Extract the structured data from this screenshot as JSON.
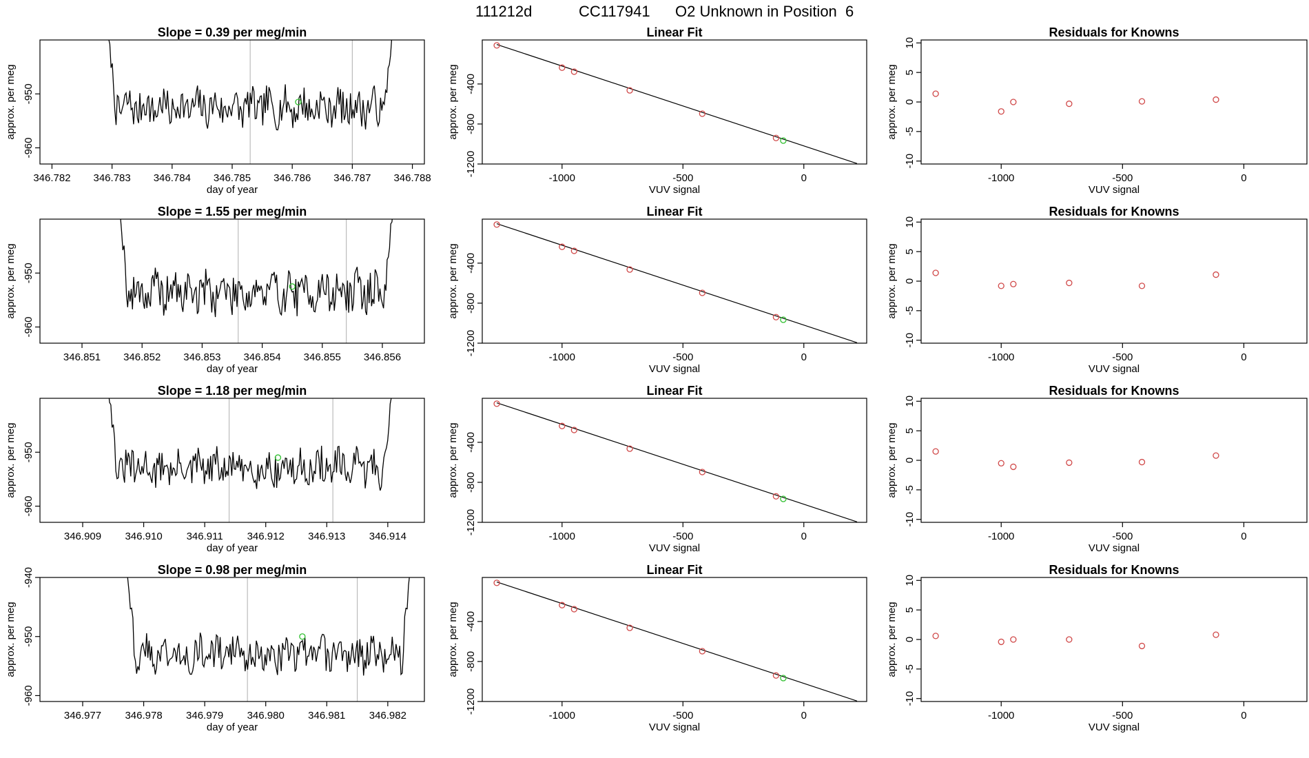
{
  "header": {
    "date_code": "111212d",
    "cylinder_id": "CC117941",
    "description": "O2 Unknown in Position  6"
  },
  "colors": {
    "axis": "#000000",
    "trace": "#000000",
    "known_point": "#d04848",
    "unknown_point": "#30c030",
    "cycle_marker": "#bbbbbb"
  },
  "chart_data": [
    {
      "panel": "row1-timeseries",
      "type": "line",
      "title": "Slope =  0.39  per meg/min",
      "xlabel": "day of year",
      "ylabel": "approx. per meg",
      "xlim": [
        346.7818,
        346.7882
      ],
      "ylim": [
        -963,
        -940
      ],
      "xticks": [
        346.782,
        346.783,
        346.784,
        346.785,
        346.786,
        346.787,
        346.788
      ],
      "xtick_labels": [
        "346.782",
        "346.783",
        "346.784",
        "346.785",
        "346.786",
        "346.787",
        "346.788"
      ],
      "yticks": [
        -960,
        -950
      ],
      "ytick_labels": [
        "-960",
        "-950"
      ],
      "vlines": [
        346.7853,
        346.787
      ],
      "unknown_point": {
        "x": 346.7861,
        "y": -951.5
      },
      "trace": {
        "start": 346.7829,
        "end": 346.7877,
        "base": -952.5,
        "amp": 3.2,
        "seed": 7
      }
    },
    {
      "panel": "row1-linear-fit",
      "type": "scatter",
      "title": "Linear Fit",
      "xlabel": "VUV signal",
      "ylabel": "approx. per meg",
      "xlim": [
        -1330,
        260
      ],
      "ylim": [
        -1200,
        40
      ],
      "xticks": [
        -1000,
        -500,
        0
      ],
      "xtick_labels": [
        "-1000",
        "-500",
        "0"
      ],
      "yticks": [
        -1200,
        -800,
        -400
      ],
      "ytick_labels": [
        "-1200",
        "-800",
        "-400"
      ],
      "fit_line": {
        "x": [
          -1270,
          220
        ],
        "y": [
          -5,
          -1195
        ]
      },
      "knowns": {
        "x": [
          -1270,
          -1000,
          -950,
          -720,
          -420,
          -115
        ],
        "y": [
          -14,
          -237,
          -277,
          -464,
          -697,
          -940
        ]
      },
      "unknown": {
        "x": -85,
        "y": -966
      }
    },
    {
      "panel": "row1-residuals",
      "type": "scatter",
      "title": "Residuals for Knowns",
      "xlabel": "VUV signal",
      "ylabel": "approx. per meg",
      "xlim": [
        -1330,
        260
      ],
      "ylim": [
        -10.5,
        10.5
      ],
      "xticks": [
        -1000,
        -500,
        0
      ],
      "xtick_labels": [
        "-1000",
        "-500",
        "0"
      ],
      "yticks": [
        -10,
        -5,
        0,
        5,
        10
      ],
      "ytick_labels": [
        "-10",
        "-5",
        "0",
        "5",
        "10"
      ],
      "knowns": {
        "x": [
          -1270,
          -1000,
          -950,
          -720,
          -420,
          -115
        ],
        "y": [
          1.4,
          -1.6,
          0.0,
          -0.3,
          0.1,
          0.4
        ]
      }
    },
    {
      "panel": "row2-timeseries",
      "type": "line",
      "title": "Slope =  1.55  per meg/min",
      "xlabel": "day of year",
      "ylabel": "approx. per meg",
      "xlim": [
        346.8503,
        346.8567
      ],
      "ylim": [
        -963,
        -940
      ],
      "xticks": [
        346.851,
        346.852,
        346.853,
        346.854,
        346.855,
        346.856
      ],
      "xtick_labels": [
        "346.851",
        "346.852",
        "346.853",
        "346.854",
        "346.855",
        "346.856"
      ],
      "yticks": [
        -960,
        -950
      ],
      "ytick_labels": [
        "-960",
        "-950"
      ],
      "vlines": [
        346.8536,
        346.8554
      ],
      "unknown_point": {
        "x": 346.8545,
        "y": -952.5
      },
      "trace": {
        "start": 346.8516,
        "end": 346.8562,
        "base": -953.5,
        "amp": 3.5,
        "seed": 19
      }
    },
    {
      "panel": "row2-linear-fit",
      "type": "scatter",
      "title": "Linear Fit",
      "xlabel": "VUV signal",
      "ylabel": "approx. per meg",
      "xlim": [
        -1330,
        260
      ],
      "ylim": [
        -1200,
        40
      ],
      "xticks": [
        -1000,
        -500,
        0
      ],
      "xtick_labels": [
        "-1000",
        "-500",
        "0"
      ],
      "yticks": [
        -1200,
        -800,
        -400
      ],
      "ytick_labels": [
        "-1200",
        "-800",
        "-400"
      ],
      "fit_line": {
        "x": [
          -1270,
          220
        ],
        "y": [
          -5,
          -1195
        ]
      },
      "knowns": {
        "x": [
          -1270,
          -1000,
          -950,
          -720,
          -420,
          -115
        ],
        "y": [
          -14,
          -237,
          -277,
          -464,
          -697,
          -940
        ]
      },
      "unknown": {
        "x": -85,
        "y": -966
      }
    },
    {
      "panel": "row2-residuals",
      "type": "scatter",
      "title": "Residuals for Knowns",
      "xlabel": "VUV signal",
      "ylabel": "approx. per meg",
      "xlim": [
        -1330,
        260
      ],
      "ylim": [
        -10.5,
        10.5
      ],
      "xticks": [
        -1000,
        -500,
        0
      ],
      "xtick_labels": [
        "-1000",
        "-500",
        "0"
      ],
      "yticks": [
        -10,
        -5,
        0,
        5,
        10
      ],
      "ytick_labels": [
        "-10",
        "-5",
        "0",
        "5",
        "10"
      ],
      "knowns": {
        "x": [
          -1270,
          -1000,
          -950,
          -720,
          -420,
          -115
        ],
        "y": [
          1.4,
          -0.8,
          -0.5,
          -0.3,
          -0.8,
          1.1
        ]
      }
    },
    {
      "panel": "row3-timeseries",
      "type": "line",
      "title": "Slope =  1.18  per meg/min",
      "xlabel": "day of year",
      "ylabel": "approx. per meg",
      "xlim": [
        346.9083,
        346.9146
      ],
      "ylim": [
        -963,
        -940
      ],
      "xticks": [
        346.909,
        346.91,
        346.911,
        346.912,
        346.913,
        346.914
      ],
      "xtick_labels": [
        "346.909",
        "346.910",
        "346.911",
        "346.912",
        "346.913",
        "346.914"
      ],
      "yticks": [
        -960,
        -950
      ],
      "ytick_labels": [
        "-960",
        "-950"
      ],
      "vlines": [
        346.9114,
        346.9131
      ],
      "unknown_point": {
        "x": 346.9122,
        "y": -951.0
      },
      "trace": {
        "start": 346.9094,
        "end": 346.9141,
        "base": -953.0,
        "amp": 3.2,
        "seed": 31
      }
    },
    {
      "panel": "row3-linear-fit",
      "type": "scatter",
      "title": "Linear Fit",
      "xlabel": "VUV signal",
      "ylabel": "approx. per meg",
      "xlim": [
        -1330,
        260
      ],
      "ylim": [
        -1200,
        40
      ],
      "xticks": [
        -1000,
        -500,
        0
      ],
      "xtick_labels": [
        "-1000",
        "-500",
        "0"
      ],
      "yticks": [
        -1200,
        -800,
        -400
      ],
      "ytick_labels": [
        "-1200",
        "-800",
        "-400"
      ],
      "fit_line": {
        "x": [
          -1270,
          220
        ],
        "y": [
          -5,
          -1195
        ]
      },
      "knowns": {
        "x": [
          -1270,
          -1000,
          -950,
          -720,
          -420,
          -115
        ],
        "y": [
          -14,
          -237,
          -277,
          -464,
          -697,
          -940
        ]
      },
      "unknown": {
        "x": -85,
        "y": -966
      }
    },
    {
      "panel": "row3-residuals",
      "type": "scatter",
      "title": "Residuals for Knowns",
      "xlabel": "VUV signal",
      "ylabel": "approx. per meg",
      "xlim": [
        -1330,
        260
      ],
      "ylim": [
        -10.5,
        10.5
      ],
      "xticks": [
        -1000,
        -500,
        0
      ],
      "xtick_labels": [
        "-1000",
        "-500",
        "0"
      ],
      "yticks": [
        -10,
        -5,
        0,
        5,
        10
      ],
      "ytick_labels": [
        "-10",
        "-5",
        "0",
        "5",
        "10"
      ],
      "knowns": {
        "x": [
          -1270,
          -1000,
          -950,
          -720,
          -420,
          -115
        ],
        "y": [
          1.5,
          -0.5,
          -1.1,
          -0.4,
          -0.3,
          0.8
        ]
      }
    },
    {
      "panel": "row4-timeseries",
      "type": "line",
      "title": "Slope =  0.98  per meg/min",
      "xlabel": "day of year",
      "ylabel": "approx. per meg",
      "xlim": [
        346.9763,
        346.9826
      ],
      "ylim": [
        -961,
        -940
      ],
      "xticks": [
        346.977,
        346.978,
        346.979,
        346.98,
        346.981,
        346.982
      ],
      "xtick_labels": [
        "346.977",
        "346.978",
        "346.979",
        "346.980",
        "346.981",
        "346.982"
      ],
      "yticks": [
        -960,
        -950,
        -940
      ],
      "ytick_labels": [
        "-960",
        "-950",
        "-940"
      ],
      "vlines": [
        346.9797,
        346.9815
      ],
      "unknown_point": {
        "x": 346.9806,
        "y": -950.0
      },
      "trace": {
        "start": 346.9777,
        "end": 346.9824,
        "base": -953.0,
        "amp": 2.8,
        "seed": 43
      }
    },
    {
      "panel": "row4-linear-fit",
      "type": "scatter",
      "title": "Linear Fit",
      "xlabel": "VUV signal",
      "ylabel": "approx. per meg",
      "xlim": [
        -1330,
        260
      ],
      "ylim": [
        -1200,
        40
      ],
      "xticks": [
        -1000,
        -500,
        0
      ],
      "xtick_labels": [
        "-1000",
        "-500",
        "0"
      ],
      "yticks": [
        -1200,
        -800,
        -400
      ],
      "ytick_labels": [
        "-1200",
        "-800",
        "-400"
      ],
      "fit_line": {
        "x": [
          -1270,
          220
        ],
        "y": [
          -5,
          -1195
        ]
      },
      "knowns": {
        "x": [
          -1270,
          -1000,
          -950,
          -720,
          -420,
          -115
        ],
        "y": [
          -14,
          -237,
          -277,
          -464,
          -697,
          -940
        ]
      },
      "unknown": {
        "x": -85,
        "y": -966
      }
    },
    {
      "panel": "row4-residuals",
      "type": "scatter",
      "title": "Residuals for Knowns",
      "xlabel": "VUV signal",
      "ylabel": "approx. per meg",
      "xlim": [
        -1330,
        260
      ],
      "ylim": [
        -10.5,
        10.5
      ],
      "xticks": [
        -1000,
        -500,
        0
      ],
      "xtick_labels": [
        "-1000",
        "-500",
        "0"
      ],
      "yticks": [
        -10,
        -5,
        0,
        5,
        10
      ],
      "ytick_labels": [
        "-10",
        "-5",
        "0",
        "5",
        "10"
      ],
      "knowns": {
        "x": [
          -1270,
          -1000,
          -950,
          -720,
          -420,
          -115
        ],
        "y": [
          0.6,
          -0.4,
          0.0,
          0.0,
          -1.1,
          0.8
        ]
      }
    }
  ]
}
